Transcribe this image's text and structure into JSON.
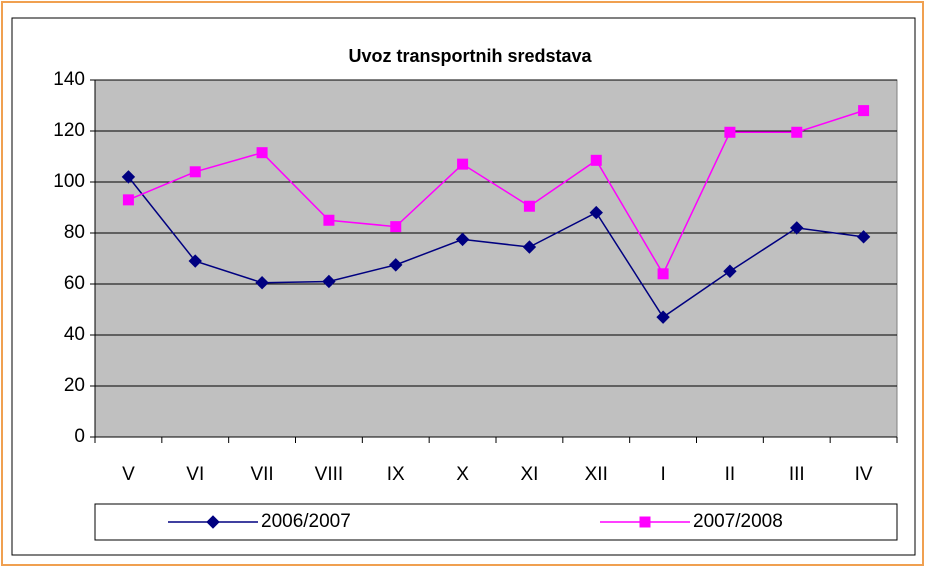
{
  "chart_data": {
    "type": "line",
    "title": "Uvoz transportnih sredstava",
    "categories": [
      "V",
      "VI",
      "VII",
      "VIII",
      "IX",
      "X",
      "XI",
      "XII",
      "I",
      "II",
      "III",
      "IV"
    ],
    "series": [
      {
        "name": "2006/2007",
        "color": "#000080",
        "marker": "diamond",
        "values": [
          102,
          69,
          60.5,
          61,
          67.5,
          77.5,
          74.5,
          88,
          47,
          65,
          82,
          78.5
        ]
      },
      {
        "name": "2007/2008",
        "color": "#ff00ff",
        "marker": "square",
        "values": [
          93,
          104,
          111.5,
          85,
          82.5,
          107,
          90.5,
          108.5,
          64,
          119.5,
          119.5,
          128
        ]
      }
    ],
    "ylim": [
      0,
      140
    ],
    "yticks": [
      0,
      20,
      40,
      60,
      80,
      100,
      120,
      140
    ],
    "grid": true,
    "legend": "bottom"
  }
}
